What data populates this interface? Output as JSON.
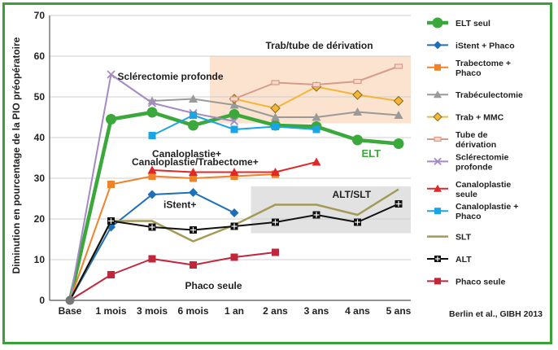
{
  "chart_data": {
    "type": "line",
    "ylabel": "Diminution en pourcentage de la PIO préopératoire",
    "xlabel": "",
    "ylim": [
      0,
      70
    ],
    "yticks": [
      0,
      10,
      20,
      30,
      40,
      50,
      60,
      70
    ],
    "categories": [
      "Base",
      "1 mois",
      "3 mois",
      "6 mois",
      "1 an",
      "2 ans",
      "3 ans",
      "4 ans",
      "5 ans"
    ],
    "grid": true,
    "legend_position": "right",
    "source": "Berlin et al., GIBH 2013",
    "annotations": [
      {
        "text": "Sclérectomie profonde",
        "x": "1 mois",
        "y": 55
      },
      {
        "text": "Trab/tube de dérivation",
        "x": "2 ans",
        "y": 57
      },
      {
        "text": "Canaloplastie+",
        "x": "3 mois",
        "y": 38
      },
      {
        "text": "Canaloplastie/Trabectome+",
        "x": "3 mois",
        "y": 34
      },
      {
        "text": "iStent+",
        "x": "3 mois",
        "y": 23.5
      },
      {
        "text": "ALT/SLT",
        "x": "2 ans",
        "y": 26
      },
      {
        "text": "ELT",
        "x": "4 ans",
        "y": 36
      },
      {
        "text": "Phaco seule",
        "x": "6 mois",
        "y": 6
      }
    ],
    "shaded_regions": [
      {
        "label": "Trab/tube de dérivation",
        "x_from": "1 an",
        "x_to": "5 ans",
        "y_from": 43.5,
        "y_to": 60,
        "color": "#fbe3cf"
      },
      {
        "label": "ALT/SLT",
        "x_from": "2 ans",
        "x_to": "5 ans",
        "y_from": 16.5,
        "y_to": 28,
        "color": "#e2e2e2"
      }
    ],
    "series": [
      {
        "name": "ELT seul",
        "color": "#3aa83a",
        "marker": "circle",
        "width": 4.5,
        "x": [
          "Base",
          "1 mois",
          "3 mois",
          "6 mois",
          "1 an",
          "2 ans",
          "3 ans",
          "4 ans",
          "5 ans"
        ],
        "values": [
          0,
          44.5,
          46.2,
          43.0,
          45.7,
          43.0,
          42.7,
          39.4,
          38.5
        ]
      },
      {
        "name": "iStent + Phaco",
        "color": "#1d6fb8",
        "marker": "diamond",
        "width": 2,
        "x": [
          "Base",
          "1 mois",
          "3 mois",
          "6 mois",
          "1 an"
        ],
        "values": [
          0,
          18.0,
          26.0,
          26.5,
          21.5
        ]
      },
      {
        "name": "Trabectome + Phaco",
        "color": "#f0832a",
        "marker": "square",
        "width": 2,
        "x": [
          "Base",
          "1 mois",
          "3 mois",
          "6 mois",
          "1 an",
          "2 ans"
        ],
        "values": [
          0,
          28.5,
          30.5,
          30.0,
          30.5,
          31.0
        ]
      },
      {
        "name": "Trabéculectomie",
        "color": "#9a9a9a",
        "marker": "triangle",
        "width": 2,
        "x": [
          "3 mois",
          "6 mois",
          "1 an",
          "2 ans",
          "3 ans",
          "4 ans",
          "5 ans"
        ],
        "values": [
          49.0,
          49.5,
          48.0,
          45.0,
          45.0,
          46.3,
          45.5
        ]
      },
      {
        "name": "Trab + MMC",
        "color": "#f3b63a",
        "marker": "diamond",
        "width": 2,
        "x": [
          "1 an",
          "2 ans",
          "3 ans",
          "4 ans",
          "5 ans"
        ],
        "values": [
          49.5,
          47.2,
          52.5,
          50.5,
          49.0
        ]
      },
      {
        "name": "Tube de dérivation",
        "color": "#d49c8a",
        "marker": "dash",
        "width": 2,
        "x": [
          "1 an",
          "2 ans",
          "3 ans",
          "4 ans",
          "5 ans"
        ],
        "values": [
          49.5,
          53.5,
          53.0,
          53.8,
          57.5
        ]
      },
      {
        "name": "Sclérectomie profonde",
        "color": "#a48ac4",
        "marker": "cross",
        "width": 2,
        "x": [
          "Base",
          "1 mois",
          "3 mois",
          "6 mois",
          "1 an"
        ],
        "values": [
          0,
          55.5,
          48.5,
          46.0,
          44.0
        ]
      },
      {
        "name": "Canaloplastie seule",
        "color": "#e02828",
        "marker": "triangle",
        "width": 2,
        "x": [
          "3 mois",
          "6 mois",
          "1 an",
          "2 ans",
          "3 ans"
        ],
        "values": [
          32.0,
          31.5,
          31.5,
          31.5,
          34.0
        ]
      },
      {
        "name": "Canaloplastie + Phaco",
        "color": "#1aa5e5",
        "marker": "square",
        "width": 2,
        "x": [
          "3 mois",
          "6 mois",
          "1 an",
          "2 ans",
          "3 ans"
        ],
        "values": [
          40.5,
          45.5,
          42.0,
          42.7,
          42.0
        ]
      },
      {
        "name": "SLT",
        "color": "#a39a58",
        "marker": "none",
        "width": 2.5,
        "x": [
          "Base",
          "1 mois",
          "3 mois",
          "6 mois",
          "1 an",
          "2 ans",
          "3 ans",
          "4 ans",
          "5 ans"
        ],
        "values": [
          0,
          19.5,
          19.5,
          14.5,
          18.5,
          23.5,
          23.5,
          21.0,
          27.3
        ]
      },
      {
        "name": "ALT",
        "color": "#111111",
        "marker": "crossbox",
        "width": 2,
        "x": [
          "Base",
          "1 mois",
          "3 mois",
          "6 mois",
          "1 an",
          "2 ans",
          "3 ans",
          "4 ans",
          "5 ans"
        ],
        "values": [
          0,
          19.5,
          18.0,
          17.3,
          18.2,
          19.2,
          21.0,
          19.2,
          23.7
        ]
      },
      {
        "name": "Phaco seule",
        "color": "#c0273b",
        "marker": "square",
        "width": 2,
        "x": [
          "Base",
          "1 mois",
          "3 mois",
          "6 mois",
          "1 an",
          "2 ans"
        ],
        "values": [
          0,
          6.3,
          10.2,
          8.7,
          10.6,
          11.8
        ]
      }
    ]
  }
}
